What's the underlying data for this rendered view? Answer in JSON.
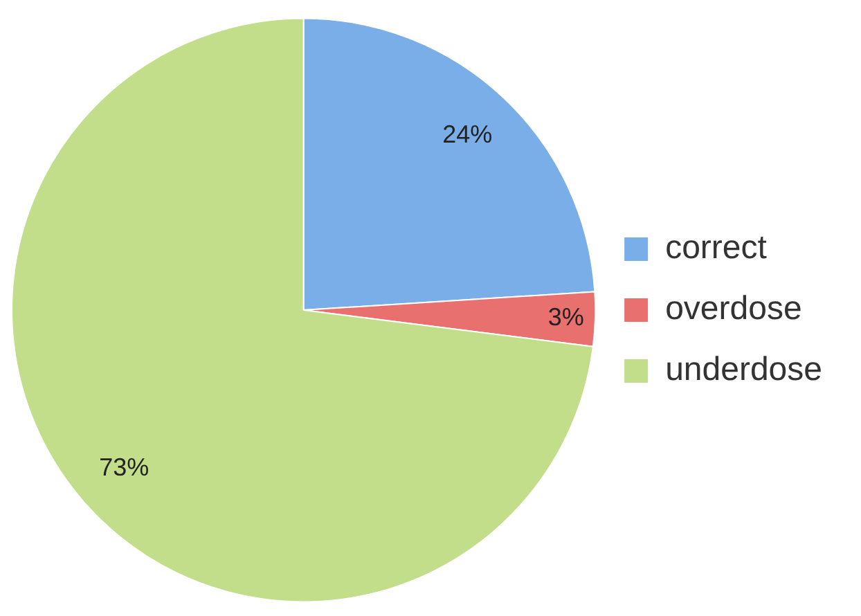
{
  "chart_data": {
    "type": "pie",
    "categories": [
      "correct",
      "overdose",
      "underdose"
    ],
    "values": [
      24,
      3,
      73
    ],
    "colors": [
      "#7aaee8",
      "#e8706e",
      "#c2de8a"
    ],
    "value_labels": [
      "24%",
      "3%",
      "73%"
    ],
    "legend": "right"
  }
}
